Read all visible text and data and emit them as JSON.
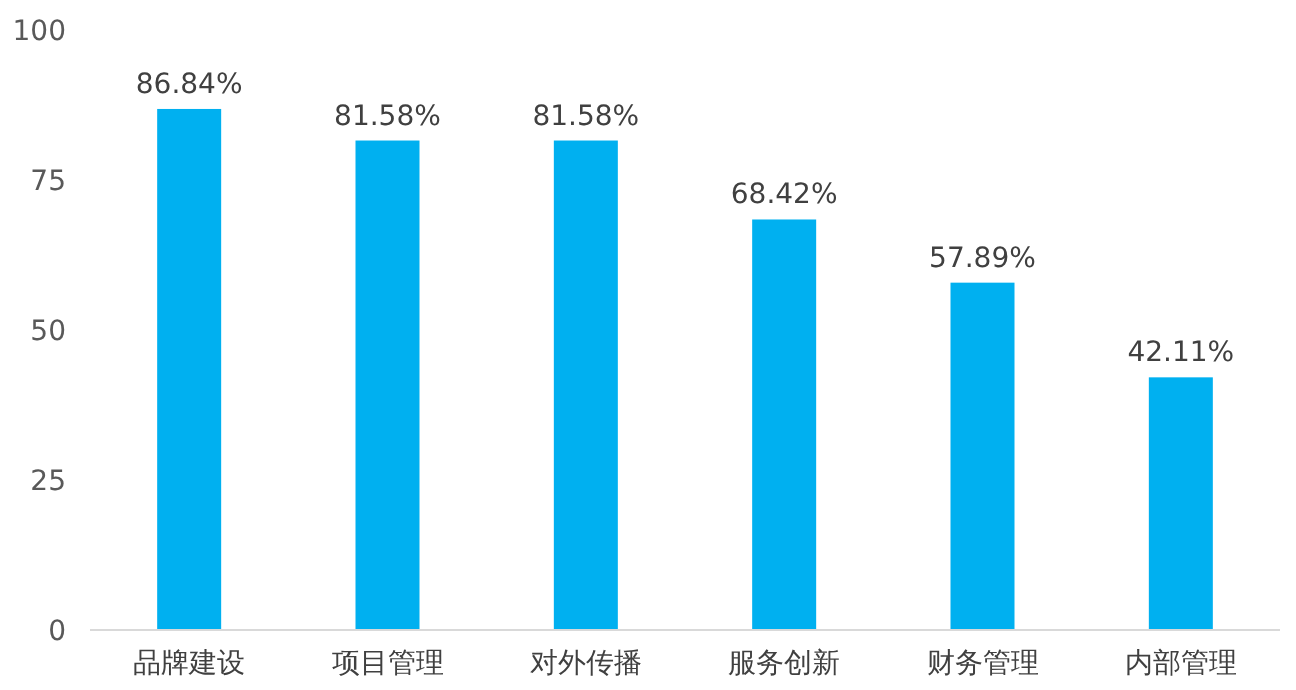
{
  "chart_data": {
    "type": "bar",
    "categories": [
      "品牌建设",
      "项目管理",
      "对外传播",
      "服务创新",
      "财务管理",
      "内部管理"
    ],
    "values": [
      86.84,
      81.58,
      81.58,
      68.42,
      57.89,
      42.11
    ],
    "value_labels": [
      "86.84%",
      "81.58%",
      "81.58%",
      "68.42%",
      "57.89%",
      "42.11%"
    ],
    "color": "#00b0f0",
    "ylim": [
      0,
      100
    ],
    "yticks": [
      0,
      25,
      50,
      75,
      100
    ]
  }
}
